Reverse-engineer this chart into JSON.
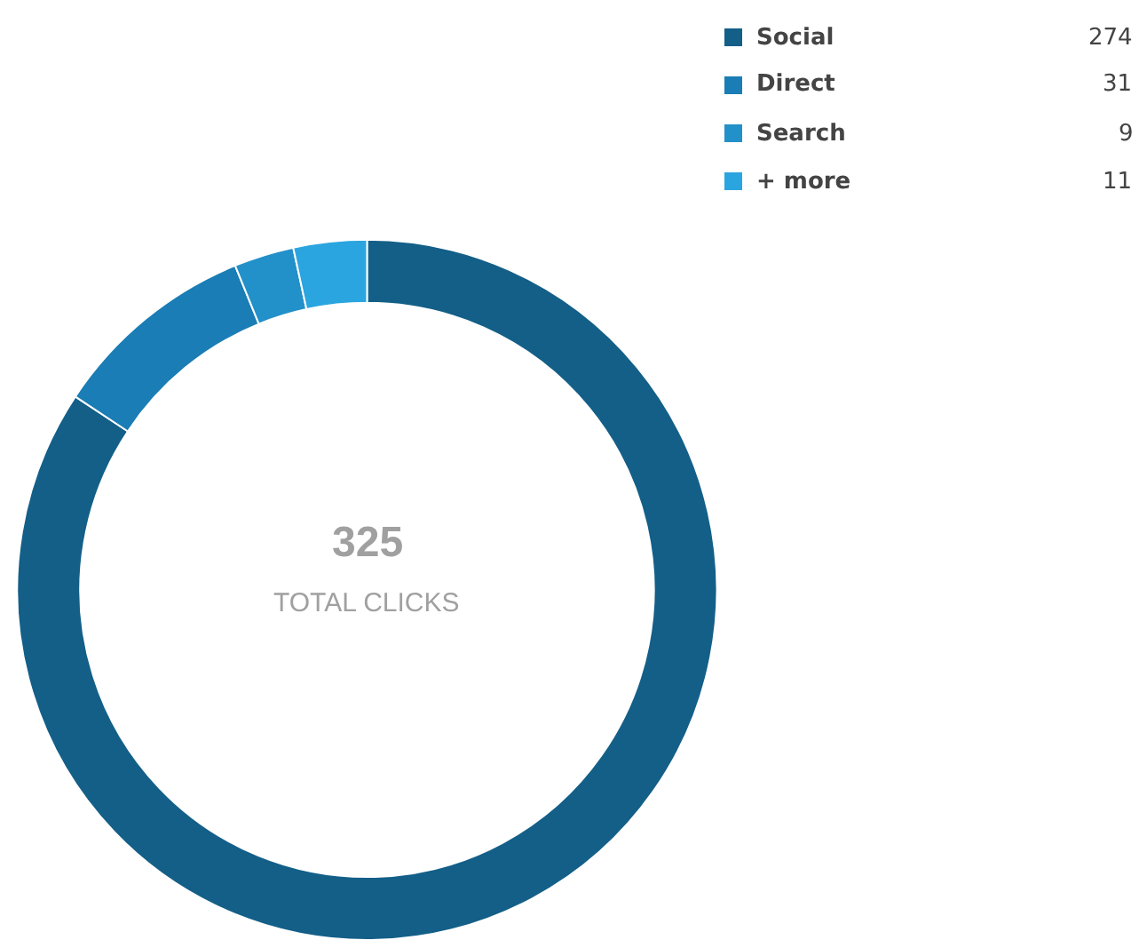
{
  "chart_data": {
    "type": "donut",
    "categories": [
      "Social",
      "Direct",
      "Search",
      "+ more"
    ],
    "values": [
      274,
      31,
      9,
      11
    ],
    "colors": [
      "#135f88",
      "#1a7db5",
      "#2290c9",
      "#2aa5df"
    ],
    "data_labels": true,
    "legend": "top right",
    "annotations": [
      "325",
      "TOTAL CLICKS"
    ]
  }
}
